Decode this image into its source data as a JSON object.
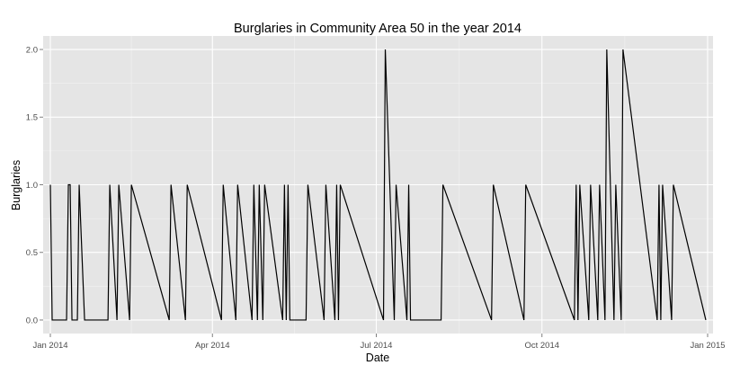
{
  "chart_data": {
    "type": "line",
    "title": "Burglaries in Community Area 50 in the year 2014",
    "xlabel": "Date",
    "ylabel": "Burglaries",
    "xlim": [
      "2013-12-28",
      "2015-01-04"
    ],
    "ylim": [
      -0.1,
      2.1
    ],
    "x_ticks": [
      {
        "date": "2014-01-01",
        "label": "Jan 2014"
      },
      {
        "date": "2014-04-01",
        "label": "Apr 2014"
      },
      {
        "date": "2014-07-01",
        "label": "Jul 2014"
      },
      {
        "date": "2014-10-01",
        "label": "Oct 2014"
      },
      {
        "date": "2015-01-01",
        "label": "Jan 2015"
      }
    ],
    "y_ticks": [
      {
        "value": 0,
        "label": "0.0"
      },
      {
        "value": 0.5,
        "label": "0.5"
      },
      {
        "value": 1,
        "label": "1.0"
      },
      {
        "value": 1.5,
        "label": "1.5"
      },
      {
        "value": 2,
        "label": "2.0"
      }
    ],
    "grid": true,
    "panel_background": "#e5e5e5",
    "grid_color": "#ffffff",
    "line_color": "#000000",
    "series": [
      {
        "x": [
          "2014-01-01",
          "2014-01-02",
          "2014-01-10",
          "2014-01-11",
          "2014-01-12",
          "2014-01-13",
          "2014-01-16",
          "2014-01-17",
          "2014-01-20",
          "2014-01-21",
          "2014-02-02",
          "2014-02-03",
          "2014-02-07",
          "2014-02-08",
          "2014-02-14",
          "2014-02-15",
          "2014-03-08",
          "2014-03-09",
          "2014-03-17",
          "2014-03-18",
          "2014-04-06",
          "2014-04-07",
          "2014-04-14",
          "2014-04-15",
          "2014-04-23",
          "2014-04-24",
          "2014-04-26",
          "2014-04-27",
          "2014-04-29",
          "2014-04-30",
          "2014-05-10",
          "2014-05-11",
          "2014-05-12",
          "2014-05-13",
          "2014-05-14",
          "2014-05-23",
          "2014-05-24",
          "2014-06-02",
          "2014-06-03",
          "2014-06-08",
          "2014-06-09",
          "2014-06-10",
          "2014-06-11",
          "2014-07-05",
          "2014-07-06",
          "2014-07-11",
          "2014-07-12",
          "2014-07-18",
          "2014-07-19",
          "2014-07-20",
          "2014-08-06",
          "2014-08-07",
          "2014-09-03",
          "2014-09-04",
          "2014-09-21",
          "2014-09-22",
          "2014-10-19",
          "2014-10-20",
          "2014-10-21",
          "2014-10-22",
          "2014-10-27",
          "2014-10-28",
          "2014-11-01",
          "2014-11-02",
          "2014-11-05",
          "2014-11-06",
          "2014-11-10",
          "2014-11-11",
          "2014-11-14",
          "2014-11-15",
          "2014-12-04",
          "2014-12-05",
          "2014-12-06",
          "2014-12-07",
          "2014-12-12",
          "2014-12-13",
          "2014-12-31"
        ],
        "values": [
          1,
          0,
          0,
          1,
          1,
          0,
          0,
          1,
          0,
          0,
          0,
          1,
          0,
          1,
          0,
          1,
          0,
          1,
          0,
          1,
          0,
          1,
          0,
          1,
          0,
          1,
          0,
          1,
          0,
          1,
          0,
          1,
          0,
          1,
          0,
          0,
          1,
          0,
          1,
          0,
          1,
          0,
          1,
          0,
          2,
          0,
          1,
          0,
          1,
          0,
          0,
          1,
          0,
          1,
          0,
          1,
          0,
          1,
          0,
          1,
          0,
          1,
          0,
          1,
          0,
          2,
          0,
          1,
          0,
          2,
          0,
          1,
          0,
          1,
          0,
          1,
          0
        ]
      }
    ]
  }
}
